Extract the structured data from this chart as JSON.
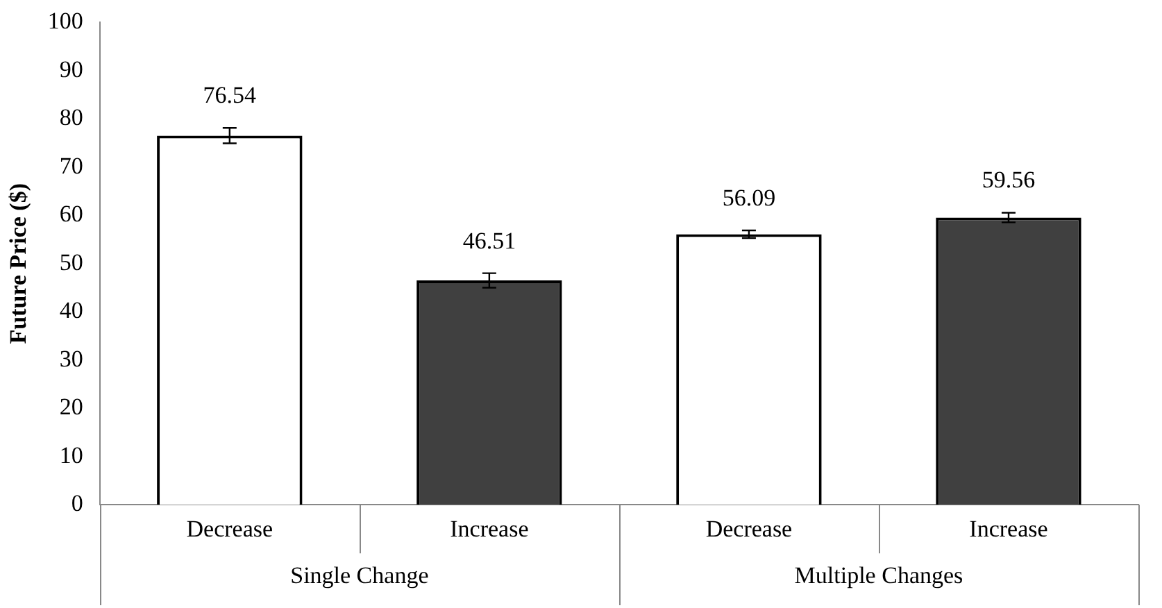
{
  "chart_data": {
    "type": "bar",
    "ylabel": "Future Price ($)",
    "categories": [
      "Decrease",
      "Increase",
      "Decrease",
      "Increase"
    ],
    "series": [
      {
        "colors": [
          "#ffffff",
          "#404040",
          "#ffffff",
          "#404040"
        ],
        "values": [
          76.54,
          46.51,
          56.09,
          59.56
        ],
        "errors": [
          1.6,
          1.5,
          0.8,
          1.0
        ]
      }
    ],
    "annotations": [
      "Single Change",
      "Multiple Changes"
    ],
    "ylim": [
      0,
      100
    ],
    "yticks": [
      0,
      10,
      20,
      30,
      40,
      50,
      60,
      70,
      80,
      90,
      100
    ],
    "data_labels": true,
    "grid": false,
    "legend": false
  }
}
